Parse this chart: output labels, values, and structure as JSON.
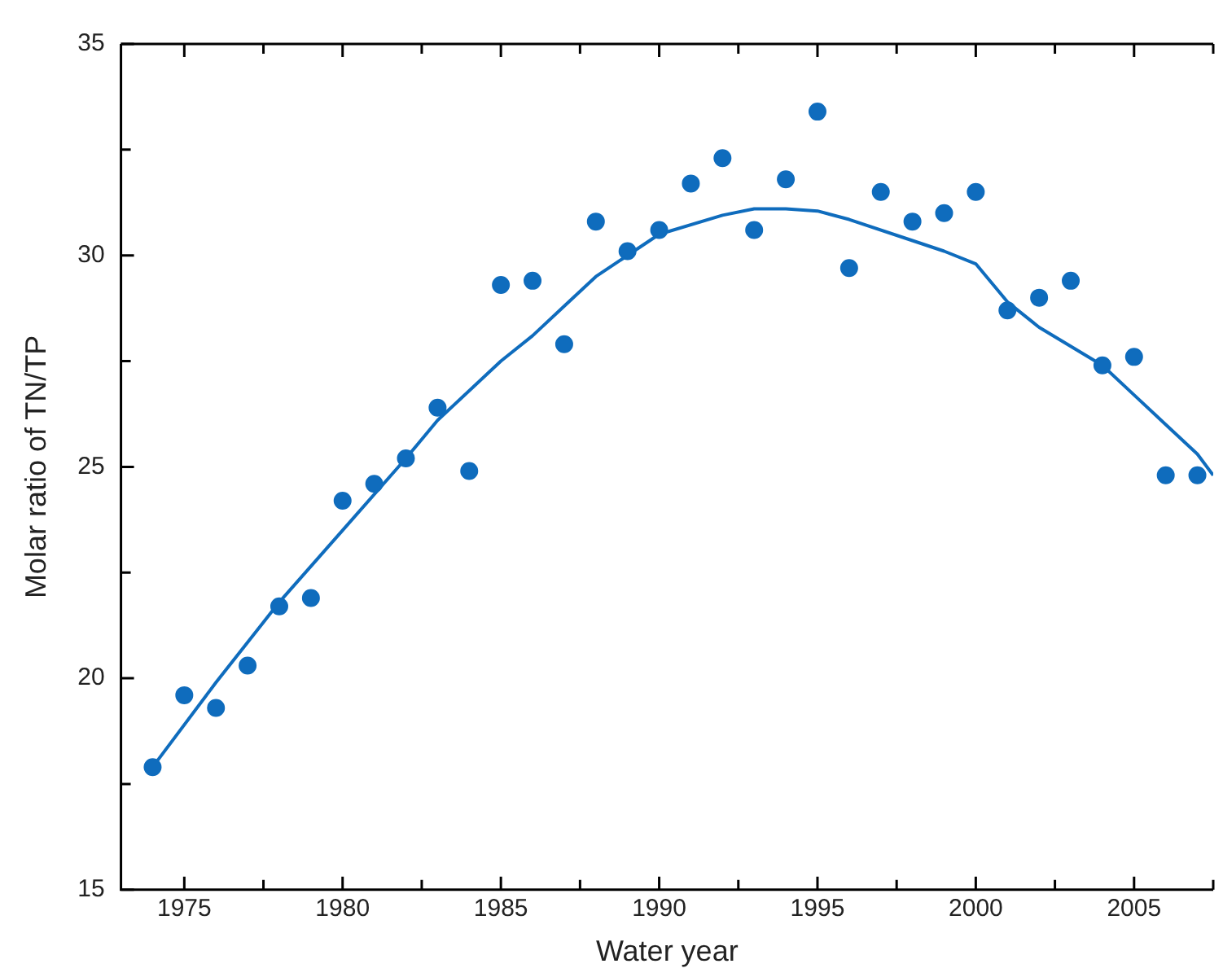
{
  "chart_data": {
    "type": "scatter",
    "xlabel": "Water year",
    "ylabel": "Molar ratio of TN/TP",
    "xlim": [
      1973,
      2007.5
    ],
    "ylim": [
      15,
      35
    ],
    "xticks": [
      1975,
      {
        "value": 1977.5,
        "label": null
      },
      1980,
      {
        "value": 1982.5,
        "label": null
      },
      1985,
      {
        "value": 1987.5,
        "label": null
      },
      1990,
      {
        "value": 1992.5,
        "label": null
      },
      1995,
      {
        "value": 1997.5,
        "label": null
      },
      2000,
      {
        "value": 2002.5,
        "label": null
      },
      2005,
      {
        "value": 2007.5,
        "label": null
      }
    ],
    "yticks": [
      15,
      {
        "value": 17.5,
        "label": null
      },
      20,
      {
        "value": 22.5,
        "label": null
      },
      25,
      {
        "value": 27.5,
        "label": null
      },
      30,
      {
        "value": 32.5,
        "label": null
      },
      35
    ],
    "series": [
      {
        "type": "scatter",
        "marker": "circle",
        "color": "#0f6cbd",
        "x": [
          1974,
          1975,
          1976,
          1977,
          1978,
          1979,
          1980,
          1981,
          1982,
          1983,
          1984,
          1985,
          1986,
          1987,
          1988,
          1989,
          1990,
          1991,
          1992,
          1993,
          1994,
          1995,
          1996,
          1997,
          1998,
          1999,
          2000,
          2001,
          2002,
          2003,
          2004,
          2005,
          2006,
          2007
        ],
        "values": [
          17.9,
          19.6,
          19.3,
          20.3,
          21.7,
          21.9,
          24.2,
          24.6,
          25.2,
          26.4,
          24.9,
          29.3,
          29.4,
          27.9,
          30.8,
          30.1,
          30.6,
          31.7,
          32.3,
          30.6,
          31.8,
          33.4,
          29.7,
          31.5,
          30.8,
          31.0,
          31.5,
          28.7,
          29.0,
          29.4,
          27.4,
          27.6,
          24.8,
          24.8
        ]
      },
      {
        "type": "line",
        "marker": "none",
        "line_style": "solid",
        "color": "#0f6cbd",
        "x": [
          1974,
          1976,
          1978,
          1980,
          1982,
          1983,
          1985,
          1986,
          1987,
          1988,
          1990,
          1992,
          1993,
          1994,
          1995,
          1996,
          1998,
          1999,
          2000,
          2001,
          2002,
          2004,
          2005,
          2006,
          2007,
          2007.5
        ],
        "values": [
          17.9,
          19.9,
          21.8,
          23.5,
          25.2,
          26.1,
          27.5,
          28.1,
          28.8,
          29.5,
          30.5,
          30.95,
          31.1,
          31.1,
          31.05,
          30.85,
          30.35,
          30.1,
          29.8,
          28.9,
          28.3,
          27.4,
          26.7,
          26.0,
          25.3,
          24.8
        ]
      }
    ]
  }
}
